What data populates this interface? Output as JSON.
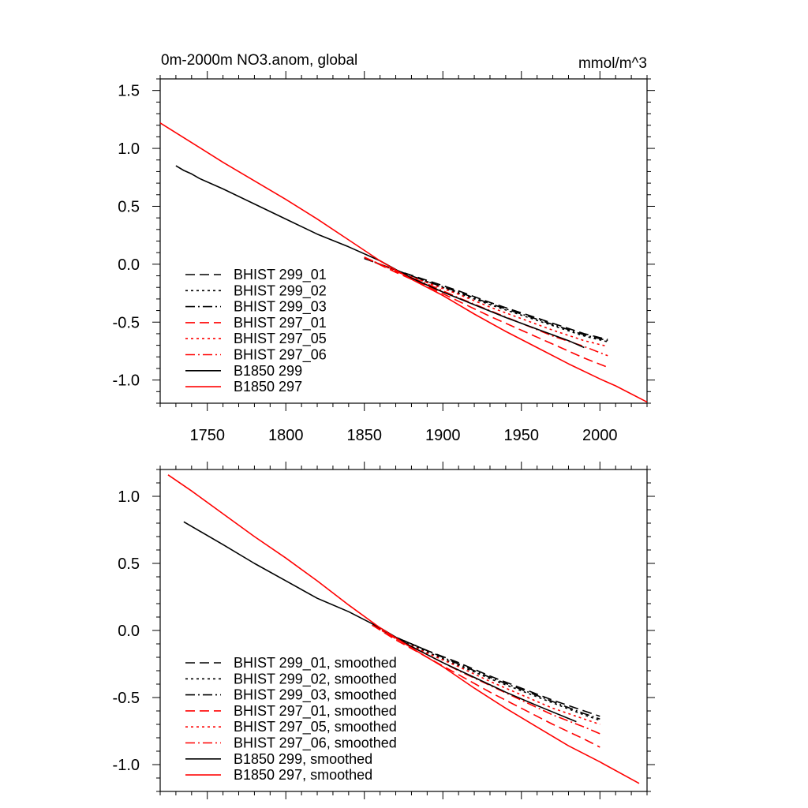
{
  "figure": {
    "title_left": "0m-2000m NO3.anom, global",
    "title_right": "mmol/m^3"
  },
  "colors": {
    "black": "#000000",
    "red": "#ff0000"
  },
  "chart_data": [
    {
      "type": "line",
      "title": "0m-2000m NO3.anom, global",
      "units": "mmol/m^3",
      "xlim": [
        1720,
        2030
      ],
      "ylim": [
        -1.2,
        1.6
      ],
      "xticks": [
        1750,
        1800,
        1850,
        1900,
        1950,
        2000
      ],
      "xtick_labels": [
        "1750",
        "1800",
        "1850",
        "1900",
        "1950",
        "2000"
      ],
      "yticks": [
        1.5,
        1.0,
        0.5,
        0.0,
        -0.5,
        -1.0
      ],
      "ytick_labels": [
        "1.5",
        "1.0",
        "0.5",
        "0.0",
        "-0.5",
        "-1.0"
      ],
      "grid": false,
      "legend_position": "bottom-left",
      "series": [
        {
          "name": "BHIST 299_01",
          "color": "#000000",
          "dash": "dash",
          "x": [
            1850,
            1870,
            1890,
            1910,
            1930,
            1950,
            1970,
            1990,
            2005
          ],
          "y": [
            0.05,
            -0.05,
            -0.14,
            -0.23,
            -0.33,
            -0.42,
            -0.51,
            -0.6,
            -0.65
          ]
        },
        {
          "name": "BHIST 299_02",
          "color": "#000000",
          "dash": "dot",
          "x": [
            1850,
            1870,
            1890,
            1910,
            1930,
            1950,
            1970,
            1990,
            2005
          ],
          "y": [
            0.05,
            -0.05,
            -0.15,
            -0.25,
            -0.35,
            -0.44,
            -0.53,
            -0.62,
            -0.67
          ]
        },
        {
          "name": "BHIST 299_03",
          "color": "#000000",
          "dash": "dashdot",
          "x": [
            1850,
            1870,
            1890,
            1910,
            1930,
            1950,
            1970,
            1990,
            2005
          ],
          "y": [
            0.05,
            -0.05,
            -0.15,
            -0.24,
            -0.34,
            -0.43,
            -0.52,
            -0.61,
            -0.66
          ]
        },
        {
          "name": "BHIST 297_01",
          "color": "#ff0000",
          "dash": "dash",
          "x": [
            1850,
            1870,
            1890,
            1910,
            1930,
            1950,
            1970,
            1990,
            2005
          ],
          "y": [
            0.06,
            -0.07,
            -0.19,
            -0.32,
            -0.45,
            -0.57,
            -0.69,
            -0.81,
            -0.89
          ]
        },
        {
          "name": "BHIST 297_05",
          "color": "#ff0000",
          "dash": "dot",
          "x": [
            1850,
            1870,
            1890,
            1910,
            1930,
            1950,
            1970,
            1990,
            2005
          ],
          "y": [
            0.06,
            -0.06,
            -0.16,
            -0.26,
            -0.37,
            -0.47,
            -0.57,
            -0.66,
            -0.71
          ]
        },
        {
          "name": "BHIST 297_06",
          "color": "#ff0000",
          "dash": "dashdot",
          "x": [
            1850,
            1870,
            1890,
            1910,
            1930,
            1950,
            1970,
            1990,
            2005
          ],
          "y": [
            0.06,
            -0.06,
            -0.17,
            -0.29,
            -0.4,
            -0.51,
            -0.62,
            -0.71,
            -0.79
          ]
        },
        {
          "name": "B1850 299",
          "color": "#000000",
          "dash": "solid",
          "x": [
            1730,
            1735,
            1740,
            1745,
            1760,
            1780,
            1800,
            1820,
            1840,
            1860,
            1880,
            1900,
            1920,
            1940,
            1960,
            1980,
            1990
          ],
          "y": [
            0.85,
            0.81,
            0.78,
            0.74,
            0.65,
            0.52,
            0.39,
            0.26,
            0.15,
            0.03,
            -0.12,
            -0.24,
            -0.35,
            -0.46,
            -0.56,
            -0.66,
            -0.72
          ]
        },
        {
          "name": "B1850 297",
          "color": "#ff0000",
          "dash": "solid",
          "x": [
            1720,
            1740,
            1760,
            1780,
            1800,
            1820,
            1840,
            1860,
            1880,
            1900,
            1920,
            1940,
            1960,
            1980,
            2000,
            2010,
            2030
          ],
          "y": [
            1.22,
            1.05,
            0.88,
            0.72,
            0.56,
            0.39,
            0.21,
            0.03,
            -0.13,
            -0.27,
            -0.43,
            -0.58,
            -0.72,
            -0.86,
            -0.99,
            -1.05,
            -1.19
          ]
        }
      ]
    },
    {
      "type": "line",
      "title": "",
      "xlim": [
        1720,
        2030
      ],
      "ylim": [
        -1.2,
        1.2
      ],
      "xticks": [
        1750,
        1800,
        1850,
        1900,
        1950,
        2000
      ],
      "xtick_labels": [],
      "yticks": [
        1.0,
        0.5,
        0.0,
        -0.5,
        -1.0
      ],
      "ytick_labels": [
        "1.0",
        "0.5",
        "0.0",
        "-0.5",
        "-1.0"
      ],
      "grid": false,
      "legend_position": "bottom-left",
      "series": [
        {
          "name": "BHIST 299_01, smoothed",
          "color": "#000000",
          "dash": "dash",
          "x": [
            1855,
            1870,
            1890,
            1910,
            1930,
            1950,
            1970,
            1990,
            2000
          ],
          "y": [
            0.04,
            -0.05,
            -0.15,
            -0.24,
            -0.34,
            -0.43,
            -0.52,
            -0.6,
            -0.64
          ]
        },
        {
          "name": "BHIST 299_02, smoothed",
          "color": "#000000",
          "dash": "dot",
          "x": [
            1855,
            1870,
            1890,
            1910,
            1930,
            1950,
            1970,
            1990,
            2000
          ],
          "y": [
            0.04,
            -0.05,
            -0.16,
            -0.26,
            -0.36,
            -0.45,
            -0.54,
            -0.63,
            -0.67
          ]
        },
        {
          "name": "BHIST 299_03, smoothed",
          "color": "#000000",
          "dash": "dashdot",
          "x": [
            1855,
            1870,
            1890,
            1910,
            1930,
            1950,
            1970,
            1990,
            2000
          ],
          "y": [
            0.04,
            -0.05,
            -0.15,
            -0.25,
            -0.35,
            -0.44,
            -0.53,
            -0.62,
            -0.66
          ]
        },
        {
          "name": "BHIST 297_01, smoothed",
          "color": "#ff0000",
          "dash": "dash",
          "x": [
            1855,
            1870,
            1890,
            1910,
            1930,
            1950,
            1970,
            1990,
            2000
          ],
          "y": [
            0.04,
            -0.07,
            -0.2,
            -0.33,
            -0.46,
            -0.58,
            -0.7,
            -0.81,
            -0.87
          ]
        },
        {
          "name": "BHIST 297_05, smoothed",
          "color": "#ff0000",
          "dash": "dot",
          "x": [
            1855,
            1870,
            1890,
            1910,
            1930,
            1950,
            1970,
            1990,
            2000
          ],
          "y": [
            0.04,
            -0.06,
            -0.17,
            -0.27,
            -0.38,
            -0.48,
            -0.58,
            -0.66,
            -0.7
          ]
        },
        {
          "name": "BHIST 297_06, smoothed",
          "color": "#ff0000",
          "dash": "dashdot",
          "x": [
            1855,
            1870,
            1890,
            1910,
            1930,
            1950,
            1970,
            1990,
            2000
          ],
          "y": [
            0.04,
            -0.06,
            -0.18,
            -0.3,
            -0.41,
            -0.52,
            -0.63,
            -0.72,
            -0.77
          ]
        },
        {
          "name": "B1850 299, smoothed",
          "color": "#000000",
          "dash": "solid",
          "x": [
            1735,
            1760,
            1780,
            1800,
            1820,
            1840,
            1860,
            1880,
            1900,
            1920,
            1940,
            1960,
            1985
          ],
          "y": [
            0.81,
            0.64,
            0.5,
            0.37,
            0.24,
            0.14,
            0.02,
            -0.12,
            -0.24,
            -0.35,
            -0.46,
            -0.56,
            -0.68
          ]
        },
        {
          "name": "B1850 297, smoothed",
          "color": "#ff0000",
          "dash": "solid",
          "x": [
            1725,
            1740,
            1760,
            1780,
            1800,
            1820,
            1840,
            1860,
            1880,
            1900,
            1920,
            1940,
            1960,
            1980,
            2000,
            2025
          ],
          "y": [
            1.16,
            1.04,
            0.87,
            0.7,
            0.54,
            0.37,
            0.19,
            0.02,
            -0.13,
            -0.27,
            -0.43,
            -0.58,
            -0.72,
            -0.86,
            -0.98,
            -1.14
          ]
        }
      ]
    }
  ]
}
